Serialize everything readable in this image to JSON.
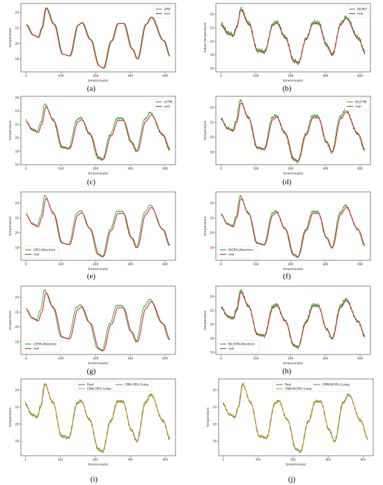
{
  "figure": {
    "colors": {
      "real": "#d62728",
      "predicted": "#2ca02c",
      "blue": "#1f77b4",
      "orange": "#ff7f0e",
      "green2": "#2ca02c"
    }
  },
  "chart_data": [
    {
      "type": "line",
      "panel_label": "(a)",
      "xlabel": "time(minute)",
      "ylabel": "temperature",
      "xlim": [
        -15,
        430
      ],
      "ylim": [
        16.3,
        25.2
      ],
      "xticks": [
        0,
        100,
        200,
        300,
        400
      ],
      "yticks": [
        18,
        20,
        22,
        24
      ],
      "legend_position": "top-right",
      "series": [
        {
          "name": "GRU",
          "role": "predicted",
          "color": "#2ca02c",
          "noise": 0.05,
          "lag": 2,
          "amp": 1.01,
          "offset": 0.0
        },
        {
          "name": "real",
          "role": "real",
          "color": "#d62728"
        }
      ]
    },
    {
      "type": "line",
      "panel_label": "(b)",
      "xlabel": "time(minute)",
      "ylabel": "indoor temperature",
      "xlim": [
        -15,
        430
      ],
      "ylim": [
        15.5,
        25.6
      ],
      "xticks": [
        0,
        100,
        200,
        300,
        400
      ],
      "yticks": [
        16,
        18,
        20,
        22,
        24
      ],
      "legend_position": "top-right",
      "series": [
        {
          "name": "BiGRU",
          "role": "predicted",
          "color": "#2ca02c",
          "noise": 0.45,
          "lag": 0,
          "amp": 1.03,
          "offset": 0.15
        },
        {
          "name": "real",
          "role": "real",
          "color": "#d62728"
        }
      ]
    },
    {
      "type": "line",
      "panel_label": "(c)",
      "xlabel": "time(minute)",
      "ylabel": "temperature",
      "xlim": [
        -15,
        430
      ],
      "ylim": [
        16.0,
        26.2
      ],
      "xticks": [
        0,
        100,
        200,
        300,
        400
      ],
      "yticks": [
        16,
        18,
        20,
        22,
        24,
        26
      ],
      "legend_position": "top-right",
      "series": [
        {
          "name": "LSTM",
          "role": "predicted",
          "color": "#2ca02c",
          "noise": 0.25,
          "lag": -3,
          "amp": 1.07,
          "offset": 0.2
        },
        {
          "name": "real",
          "role": "real",
          "color": "#d62728"
        }
      ]
    },
    {
      "type": "line",
      "panel_label": "(d)",
      "xlabel": "time(minute)",
      "ylabel": "temperature",
      "xlim": [
        -15,
        430
      ],
      "ylim": [
        16.3,
        25.5
      ],
      "xticks": [
        0,
        100,
        200,
        300,
        400
      ],
      "yticks": [
        18,
        20,
        22,
        24
      ],
      "legend_position": "top-right",
      "series": [
        {
          "name": "BiLSTM",
          "role": "predicted",
          "color": "#2ca02c",
          "noise": 0.28,
          "lag": -2,
          "amp": 1.06,
          "offset": 0.15
        },
        {
          "name": "real",
          "role": "real",
          "color": "#d62728"
        }
      ]
    },
    {
      "type": "line",
      "panel_label": "(e)",
      "xlabel": "time(minute)",
      "ylabel": "temperature",
      "xlim": [
        -15,
        430
      ],
      "ylim": [
        16.3,
        25.5
      ],
      "xticks": [
        0,
        100,
        200,
        300,
        400
      ],
      "yticks": [
        18,
        20,
        22,
        24
      ],
      "legend_position": "bottom-left",
      "series": [
        {
          "name": "GRU-Attention",
          "role": "predicted",
          "color": "#2ca02c",
          "noise": 0.08,
          "lag": -3,
          "amp": 1.06,
          "offset": 0.2
        },
        {
          "name": "real",
          "role": "real",
          "color": "#d62728"
        }
      ]
    },
    {
      "type": "line",
      "panel_label": "(f)",
      "xlabel": "time(minute)",
      "ylabel": "temperature",
      "xlim": [
        -15,
        430
      ],
      "ylim": [
        16.3,
        25.5
      ],
      "xticks": [
        0,
        100,
        200,
        300,
        400
      ],
      "yticks": [
        18,
        20,
        22,
        24
      ],
      "legend_position": "bottom-left",
      "series": [
        {
          "name": "BiGRU-Attention",
          "role": "predicted",
          "color": "#2ca02c",
          "noise": 0.18,
          "lag": -2,
          "amp": 1.06,
          "offset": 0.15
        },
        {
          "name": "real",
          "role": "real",
          "color": "#d62728"
        }
      ]
    },
    {
      "type": "line",
      "panel_label": "(g)",
      "xlabel": "time(minute)",
      "ylabel": "temperature",
      "xlim": [
        -15,
        430
      ],
      "ylim": [
        16.3,
        25.5
      ],
      "xticks": [
        0,
        100,
        200,
        300,
        400
      ],
      "yticks": [
        18,
        20,
        22,
        24
      ],
      "legend_position": "bottom-left",
      "series": [
        {
          "name": "LSTM-Attention",
          "role": "predicted",
          "color": "#2ca02c",
          "noise": 0.1,
          "lag": -4,
          "amp": 1.05,
          "offset": 0.2
        },
        {
          "name": "real",
          "role": "real",
          "color": "#d62728"
        }
      ]
    },
    {
      "type": "line",
      "panel_label": "(h)",
      "xlabel": "time(minute)",
      "ylabel": "temperature",
      "xlim": [
        -15,
        430
      ],
      "ylim": [
        15.7,
        25.5
      ],
      "xticks": [
        0,
        100,
        200,
        300,
        400
      ],
      "yticks": [
        16,
        18,
        20,
        22,
        24
      ],
      "legend_position": "bottom-left",
      "series": [
        {
          "name": "BiLSTM-Attention",
          "role": "predicted",
          "color": "#2ca02c",
          "noise": 0.35,
          "lag": -1,
          "amp": 1.05,
          "offset": 0.1
        },
        {
          "name": "real",
          "role": "real",
          "color": "#d62728"
        }
      ]
    },
    {
      "type": "line",
      "panel_label": "(i)",
      "xlabel": "time(minute)",
      "ylabel": "temperature",
      "xlim": [
        -12,
        430
      ],
      "ylim": [
        16.3,
        25.3
      ],
      "xticks": [
        1,
        101,
        201,
        301,
        401
      ],
      "yticks": [
        18,
        20,
        22,
        24
      ],
      "legend_position": "top",
      "legend_cols": 2,
      "series": [
        {
          "name": "Real",
          "role": "real",
          "color": "#1f77b4"
        },
        {
          "name": "CNN-GRU-2step",
          "role": "predicted",
          "color": "#2ca02c",
          "noise": 0.25,
          "lag": -1,
          "amp": 1.02,
          "offset": 0.05
        },
        {
          "name": "CNN-GRU-1step",
          "role": "predicted",
          "color": "#ff7f0e",
          "noise": 0.15,
          "lag": 0,
          "amp": 1.01,
          "offset": 0.0
        }
      ]
    },
    {
      "type": "line",
      "panel_label": "(j)",
      "xlabel": "time(minute)",
      "ylabel": "temperature",
      "xlim": [
        -12,
        430
      ],
      "ylim": [
        16.3,
        25.3
      ],
      "xticks": [
        1,
        101,
        201,
        301,
        401
      ],
      "yticks": [
        18,
        20,
        22,
        24
      ],
      "legend_position": "top",
      "legend_cols": 2,
      "series": [
        {
          "name": "Real",
          "role": "real",
          "color": "#1f77b4"
        },
        {
          "name": "CNN-BiGRU-2step",
          "role": "predicted",
          "color": "#2ca02c",
          "noise": 0.22,
          "lag": -1,
          "amp": 1.02,
          "offset": 0.05
        },
        {
          "name": "CNN-BiGRU-1step",
          "role": "predicted",
          "color": "#ff7f0e",
          "noise": 0.14,
          "lag": 0,
          "amp": 1.01,
          "offset": 0.0
        }
      ]
    }
  ],
  "real_curve": {
    "x": [
      0,
      20,
      35,
      45,
      57,
      80,
      105,
      125,
      150,
      160,
      185,
      210,
      222,
      245,
      265,
      280,
      305,
      320,
      345,
      360,
      395,
      415
    ],
    "y": [
      22.4,
      21.1,
      20.8,
      22.0,
      24.6,
      22.5,
      18.6,
      18.4,
      22.4,
      22.7,
      20.5,
      17.1,
      16.8,
      20.3,
      22.6,
      22.6,
      19.3,
      18.0,
      22.5,
      23.4,
      20.4,
      18.3
    ]
  }
}
